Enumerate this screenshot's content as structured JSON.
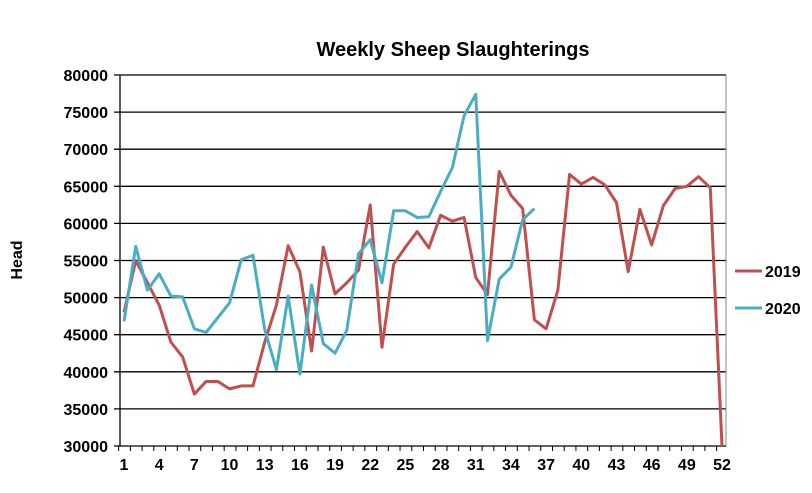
{
  "chart_data": {
    "type": "line",
    "title": "Weekly Sheep Slaughterings",
    "xlabel": "",
    "ylabel": "Head",
    "ylim": [
      30000,
      80000
    ],
    "yticks": [
      "30000",
      "35000",
      "40000",
      "45000",
      "50000",
      "55000",
      "60000",
      "65000",
      "70000",
      "75000",
      "80000"
    ],
    "xticks": [
      "1",
      "4",
      "7",
      "10",
      "13",
      "16",
      "19",
      "22",
      "25",
      "28",
      "31",
      "34",
      "37",
      "40",
      "43",
      "46",
      "49",
      "52"
    ],
    "xlim": [
      1,
      52
    ],
    "grid": "horizontal",
    "legend": "right",
    "series": [
      {
        "name": "2019",
        "color": "#c0504d",
        "values": [
          48000,
          55000,
          52000,
          49000,
          44000,
          42000,
          37000,
          38700,
          38700,
          37700,
          38100,
          38100,
          44000,
          49000,
          57000,
          53500,
          42800,
          56800,
          50500,
          52000,
          53700,
          62500,
          43300,
          54500,
          56800,
          58900,
          56700,
          61100,
          60300,
          60800,
          52700,
          50400,
          67000,
          63800,
          62000,
          47000,
          45800,
          51000,
          66600,
          65300,
          66200,
          65200,
          62800,
          53500,
          61900,
          57100,
          62400,
          64700,
          65000,
          66300,
          64800,
          30000
        ]
      },
      {
        "name": "2020",
        "color": "#4bacc6",
        "values": [
          46800,
          56900,
          51000,
          53200,
          50200,
          50100,
          45800,
          45300,
          47300,
          49300,
          55100,
          55700,
          45700,
          40300,
          50200,
          39700,
          51700,
          43800,
          42500,
          45600,
          55900,
          57800,
          52000,
          61700,
          61700,
          60800,
          60900,
          64300,
          67500,
          74500,
          77400,
          44200,
          52500,
          54100,
          60500,
          62000
        ]
      }
    ]
  }
}
